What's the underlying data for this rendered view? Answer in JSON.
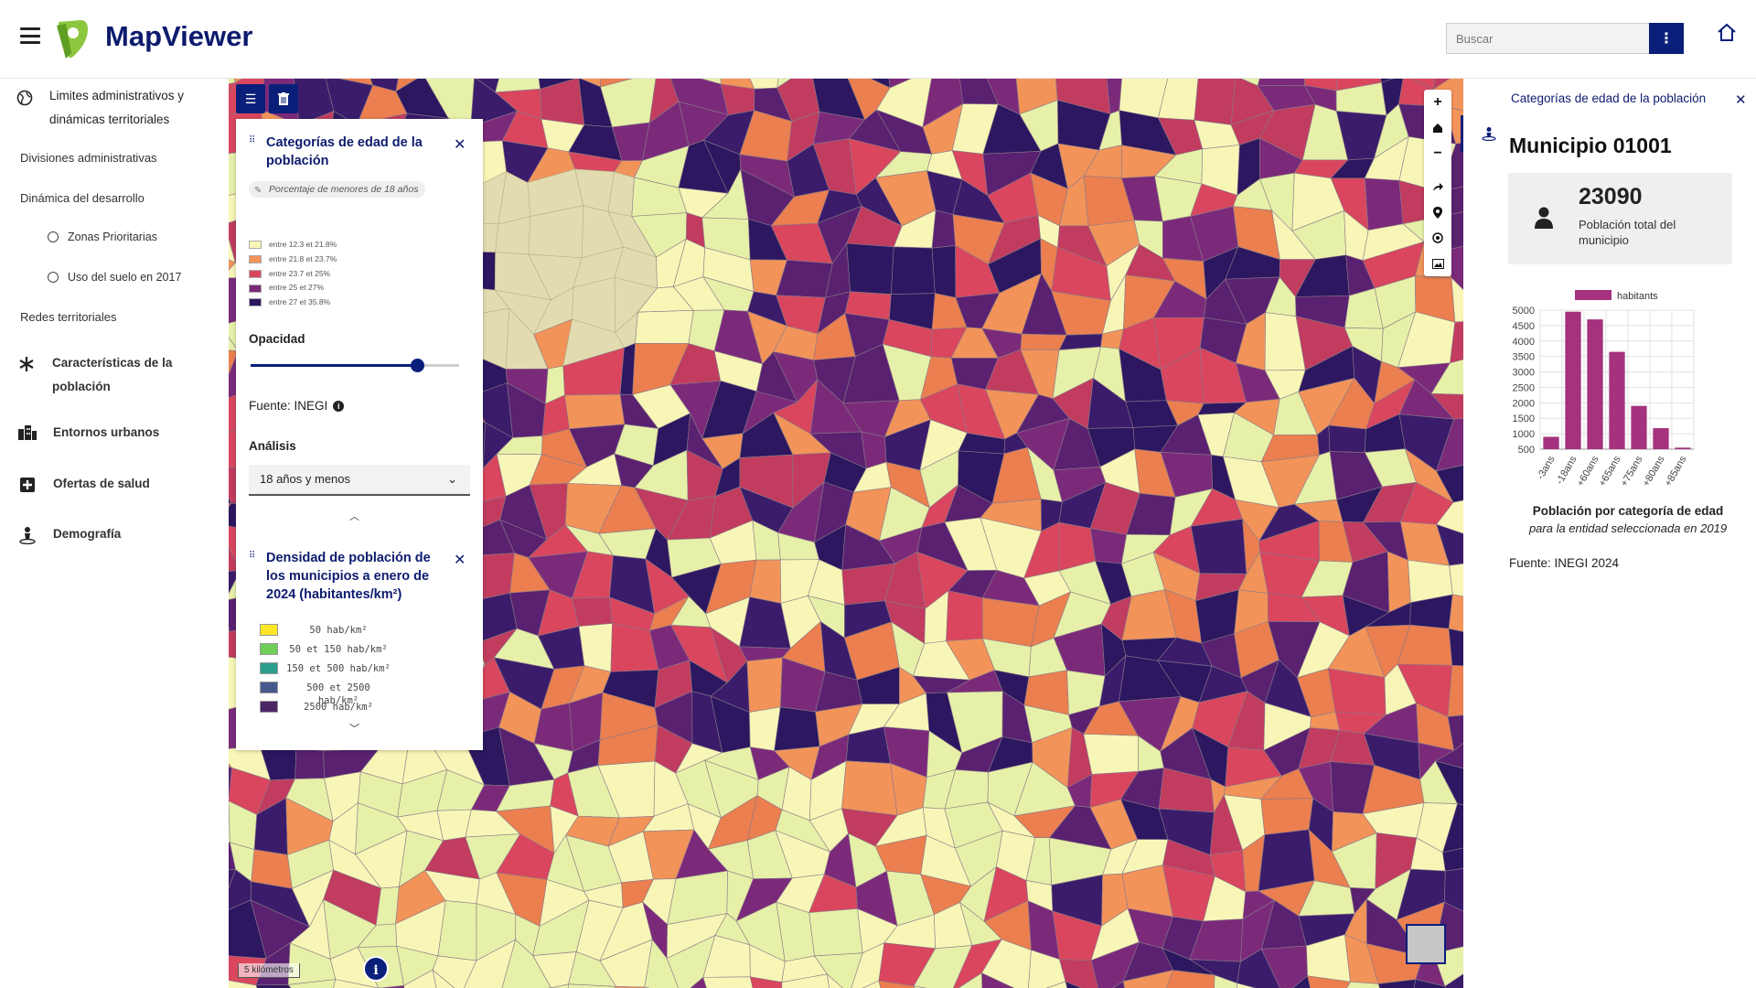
{
  "header": {
    "app_title": "MapViewer",
    "search_placeholder": "Buscar",
    "search_menu_icon": "more-vertical-icon",
    "home_icon": "home-icon"
  },
  "sidebar": {
    "items": [
      {
        "label": "Limites administrativos y dinámicas territoriales",
        "icon": "globe-icon"
      },
      {
        "label": "Divisiones administrativas"
      },
      {
        "label": "Dinámica del desarrollo"
      },
      {
        "label": "Zonas Prioritarias",
        "icon": "radio-icon"
      },
      {
        "label": "Uso del suelo en 2017",
        "icon": "radio-icon"
      },
      {
        "label": "Redes territoriales"
      },
      {
        "label": "Características de la población",
        "icon": "asterisk-icon"
      },
      {
        "label": "Entornos urbanos",
        "icon": "buildings-icon"
      },
      {
        "label": "Ofertas de salud",
        "icon": "health-plus-icon"
      },
      {
        "label": "Demografía",
        "icon": "person-pin-icon"
      }
    ]
  },
  "map": {
    "tool_list_icon": "list-icon",
    "tool_delete_icon": "trash-icon",
    "zoom_controls": [
      "+",
      "⌂",
      "−"
    ],
    "tools": [
      "share-icon",
      "location-pin-icon",
      "crosshair-icon",
      "image-icon"
    ],
    "scale_label": "5 kilómetros",
    "info_label": "i"
  },
  "layer_panel": {
    "layer1": {
      "title": "Categorías de edad de la población",
      "variable_pill": "Porcentaje de menores de 18 años",
      "legend": [
        {
          "label": "entre 12.3 et 21.8%",
          "color": "#f8f6b7"
        },
        {
          "label": "entre 21.8 et 23.7%",
          "color": "#f2935a"
        },
        {
          "label": "entre 23.7 et 25%",
          "color": "#d9465e"
        },
        {
          "label": "entre 25 et 27%",
          "color": "#7b2a7a"
        },
        {
          "label": "entre 27 et 35.8%",
          "color": "#2c1760"
        }
      ],
      "opacity_label": "Opacidad",
      "opacity_value": 0.8,
      "source_label": "Fuente: INEGI",
      "analysis_label": "Análisis",
      "analysis_selected": "18 años y menos"
    },
    "layer2": {
      "title": "Densidad de población de los municipios a enero de 2024 (habitantes/km²)",
      "legend": [
        {
          "label": "50 hab/km²",
          "color": "#fde725"
        },
        {
          "label": "50 et 150 hab/km²",
          "color": "#6ece58"
        },
        {
          "label": "150 et 500 hab/km²",
          "color": "#2a9d8f"
        },
        {
          "label": "500 et 2500 hab/km²",
          "color": "#46598c"
        },
        {
          "label": "2500 hab/km²",
          "color": "#4b2667"
        }
      ]
    }
  },
  "right_panel": {
    "header": "Categorías de edad de la población",
    "title": "Municipio 01001",
    "stat_value": "23090",
    "stat_label": "Población total del municipio",
    "chart_title": "Población por categoría de edad",
    "chart_subtitle": "para la entidad seleccionada en 2019",
    "source": "Fuente: INEGI 2024"
  },
  "chart_data": {
    "type": "bar",
    "categories": [
      "-3ans",
      "-18ans",
      "+60ans",
      "+65ans",
      "+75ans",
      "+80ans",
      "+85ans"
    ],
    "series": [
      {
        "name": "habitants",
        "values": [
          900,
          4950,
          4700,
          3650,
          1900,
          1180,
          550
        ]
      }
    ],
    "ylim": [
      500,
      5000
    ],
    "yticks": [
      500,
      1000,
      1500,
      2000,
      2500,
      3000,
      3500,
      4000,
      4500,
      5000
    ],
    "legend": "top",
    "grid": true,
    "color": "#a4327f"
  }
}
